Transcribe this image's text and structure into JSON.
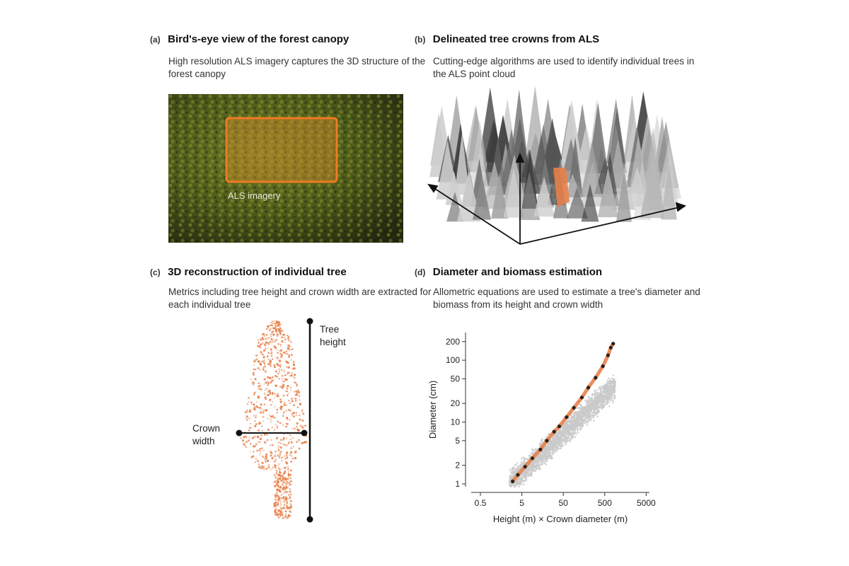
{
  "panels": {
    "a": {
      "letter": "(a)",
      "title": "Bird's-eye view of the forest canopy",
      "desc": "High resolution ALS imagery captures the 3D structure of the forest canopy",
      "overlay_label": "ALS imagery"
    },
    "b": {
      "letter": "(b)",
      "title": "Delineated tree crowns from ALS",
      "desc": "Cutting-edge algorithms are used to identify individual trees in the ALS point cloud"
    },
    "c": {
      "letter": "(c)",
      "title": "3D reconstruction of individual tree",
      "desc": "Metrics including tree height and crown width are extracted for each individual tree",
      "height_label_1": "Tree",
      "height_label_2": "height",
      "width_label_1": "Crown",
      "width_label_2": "width"
    },
    "d": {
      "letter": "(d)",
      "title": "Diameter and biomass estimation",
      "desc": "Allometric equations are used to estimate a tree's diameter and biomass from its height and crown width"
    }
  },
  "colors": {
    "accent_orange": "#e8814a",
    "highlight_box": "#f07a22",
    "canopy_dark": "#2b2f14",
    "canopy_light": "#7b8a2a",
    "cloud_gray": "#888888",
    "scatter_gray": "#c9c9c9",
    "fit_point": "#2b2118"
  },
  "chart_data": {
    "type": "scatter",
    "xlabel": "Height (m) × Crown diameter (m)",
    "ylabel": "Diameter (cm)",
    "x_scale": "log",
    "y_scale": "log",
    "xlim": [
      0.3,
      6000
    ],
    "ylim": [
      0.9,
      280
    ],
    "xticks": [
      0.5,
      5,
      50,
      500,
      5000
    ],
    "xtick_labels": [
      "0.5",
      "5",
      "50",
      "500",
      "5000"
    ],
    "yticks": [
      1,
      2,
      5,
      10,
      20,
      50,
      100,
      200
    ],
    "ytick_labels": [
      "1",
      "2",
      "5",
      "10",
      "20",
      "50",
      "100",
      "200"
    ],
    "grid": false,
    "series": [
      {
        "values": [
          {
            "x": 3,
            "y": 1.1
          },
          {
            "x": 4,
            "y": 1.4
          },
          {
            "x": 6,
            "y": 1.9
          },
          {
            "x": 9,
            "y": 2.6
          },
          {
            "x": 14,
            "y": 3.6
          },
          {
            "x": 20,
            "y": 5
          },
          {
            "x": 30,
            "y": 7
          },
          {
            "x": 40,
            "y": 8.5
          },
          {
            "x": 60,
            "y": 12
          },
          {
            "x": 90,
            "y": 17
          },
          {
            "x": 140,
            "y": 25
          },
          {
            "x": 200,
            "y": 36
          },
          {
            "x": 300,
            "y": 52
          },
          {
            "x": 450,
            "y": 80
          },
          {
            "x": 600,
            "y": 120
          },
          {
            "x": 700,
            "y": 160
          },
          {
            "x": 800,
            "y": 185
          }
        ]
      }
    ]
  }
}
